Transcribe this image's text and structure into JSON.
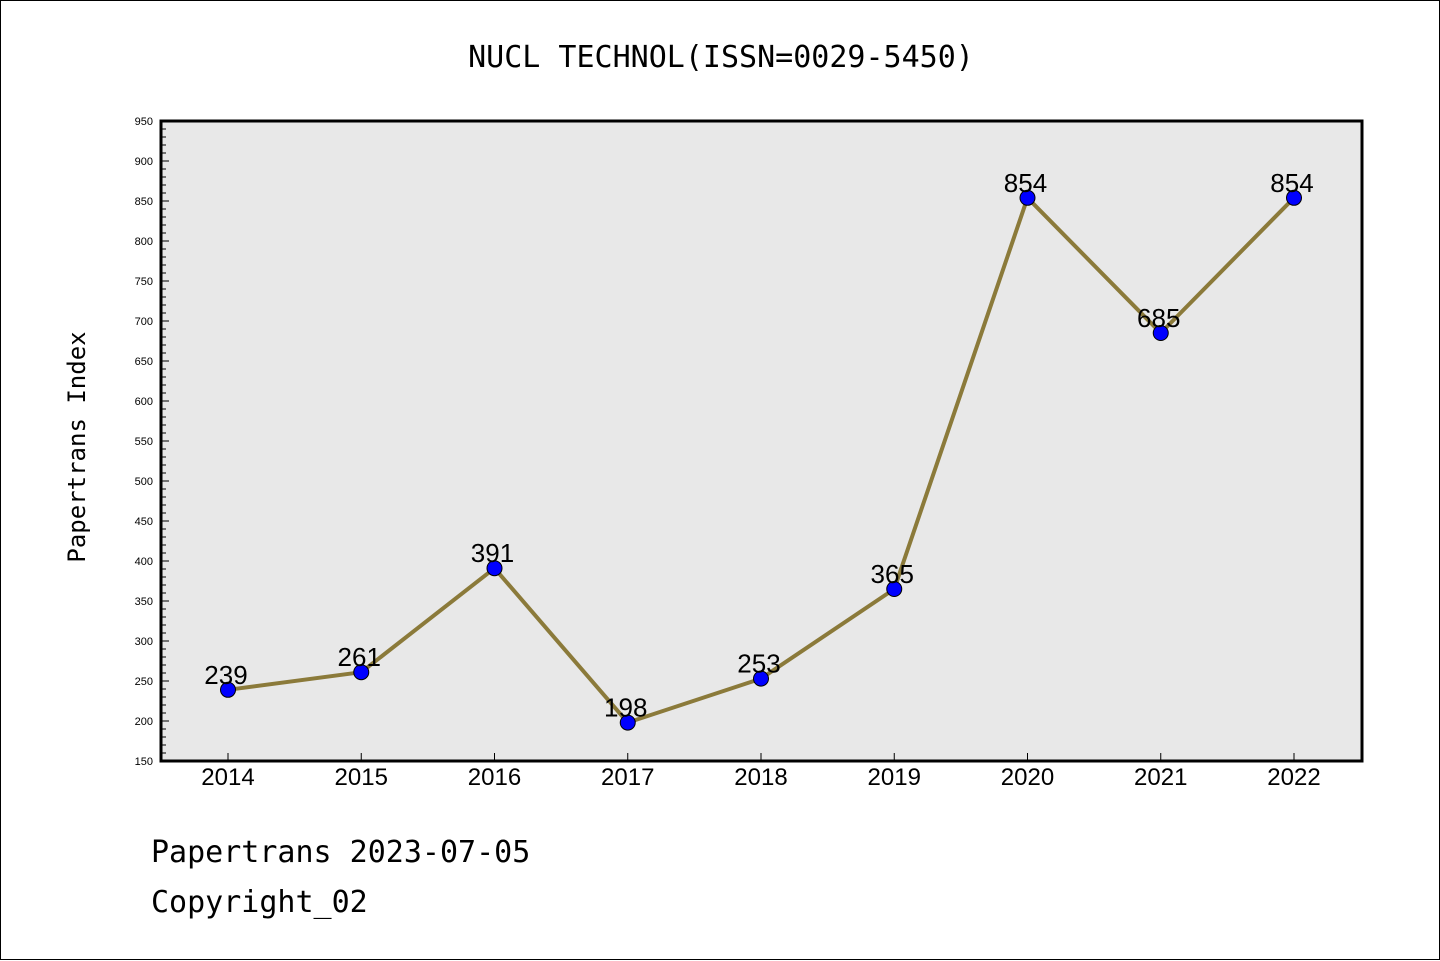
{
  "chart_data": {
    "type": "line",
    "title": "NUCL TECHNOL(ISSN=0029-5450)",
    "xlabel": "",
    "ylabel": "Papertrans Index",
    "categories": [
      "2014",
      "2015",
      "2016",
      "2017",
      "2018",
      "2019",
      "2020",
      "2021",
      "2022"
    ],
    "series": [
      {
        "values": [
          239,
          261,
          391,
          198,
          253,
          365,
          854,
          685,
          854
        ]
      }
    ],
    "ylim": [
      150,
      950
    ],
    "yticks": [
      150,
      200,
      250,
      300,
      350,
      400,
      450,
      500,
      550,
      600,
      650,
      700,
      750,
      800,
      850,
      900,
      950
    ],
    "grid": false,
    "line_color": "#8b7a3a",
    "marker_color": "#0000ff",
    "plot_background": "#e8e8e8"
  },
  "footer": {
    "line1": "Papertrans 2023-07-05",
    "line2": "Copyright_02"
  }
}
